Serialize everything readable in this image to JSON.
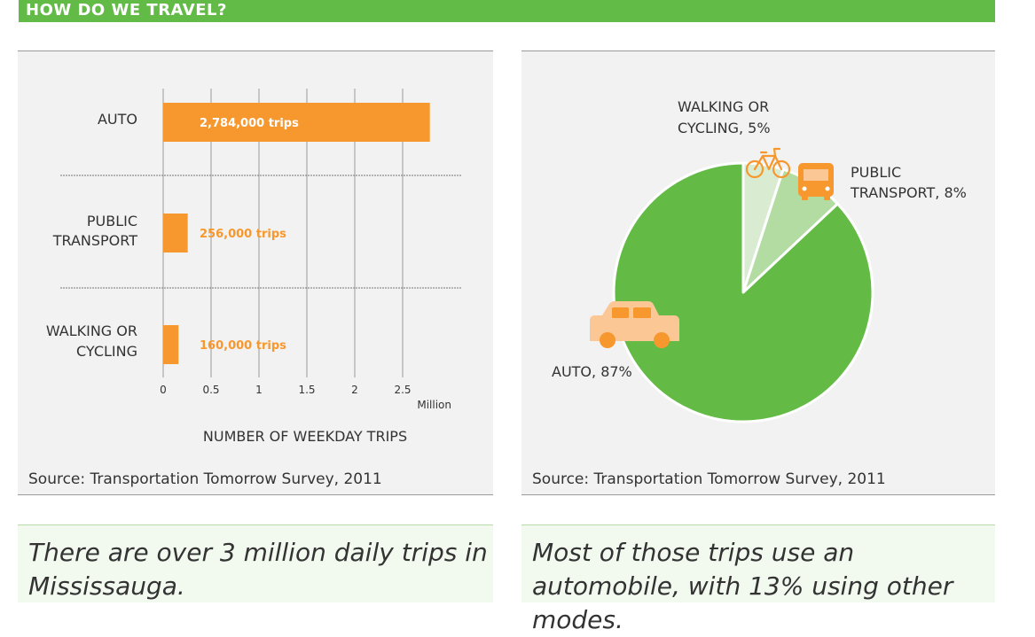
{
  "header": {
    "title": "HOW DO WE TRAVEL?"
  },
  "colors": {
    "header_green": "#62bb46",
    "bar_orange": "#f7982e",
    "pie_auto": "#63bb46",
    "pie_walking": "#d9ecd1",
    "pie_transit": "#b2dca2",
    "icon_orange": "#f7982e",
    "car_peach": "#fbc795"
  },
  "bar_panel": {
    "source": "Source: Transportation Tomorrow Survey, 2011",
    "caption": "There are over 3 million daily trips in Mississauga."
  },
  "pie_panel": {
    "source": "Source: Transportation Tomorrow Survey, 2011",
    "caption": "Most of those trips use an automobile, with 13% using other modes.",
    "icons": [
      "bicycle-icon",
      "bus-icon",
      "car-icon"
    ]
  },
  "chart_data": [
    {
      "type": "bar",
      "orientation": "horizontal",
      "categories": [
        [
          "AUTO"
        ],
        [
          "PUBLIC",
          "TRANSPORT"
        ],
        [
          "WALKING OR",
          "CYCLING"
        ]
      ],
      "values": [
        2784000,
        256000,
        160000
      ],
      "data_labels": [
        "2,784,000 trips",
        "256,000 trips",
        "160,000 trips"
      ],
      "xticks": [
        0,
        0.5,
        1,
        1.5,
        2,
        2.5
      ],
      "xtick_labels": [
        "0",
        "0.5",
        "1",
        "1.5",
        "2",
        "2.5"
      ],
      "unit_label": "Million",
      "xlabel": "NUMBER OF WEEKDAY TRIPS",
      "xlim": [
        0,
        3
      ],
      "grid": true
    },
    {
      "type": "pie",
      "slices": [
        {
          "name": "WALKING OR CYCLING",
          "label_lines": [
            "WALKING OR",
            "CYCLING, 5%"
          ],
          "value": 5
        },
        {
          "name": "PUBLIC TRANSPORT",
          "label_lines": [
            "PUBLIC",
            "TRANSPORT, 8%"
          ],
          "value": 8
        },
        {
          "name": "AUTO",
          "label_lines": [
            "AUTO, 87%"
          ],
          "value": 87
        }
      ],
      "start": "12 o'clock",
      "direction": "clockwise"
    }
  ]
}
